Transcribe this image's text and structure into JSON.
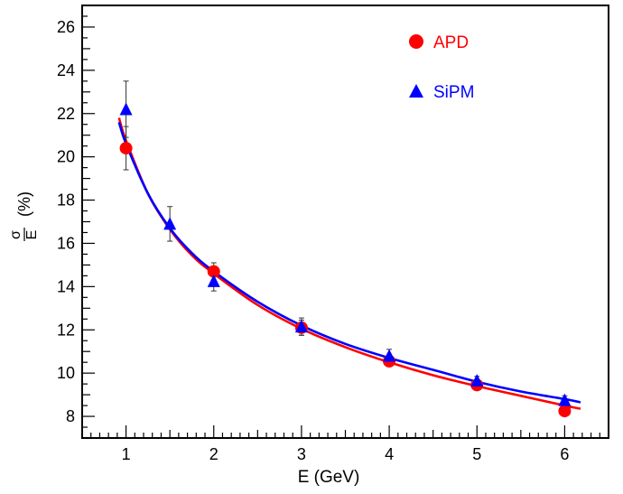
{
  "chart_data": {
    "type": "scatter",
    "xlabel": "E (GeV)",
    "ylabel": {
      "fraction_numerator": "σ",
      "fraction_denominator": "E",
      "suffix": "(%)"
    },
    "xlim": [
      0.5,
      6.5
    ],
    "ylim": [
      7,
      27
    ],
    "x_ticks": [
      1,
      2,
      3,
      4,
      5,
      6
    ],
    "y_ticks": [
      8,
      10,
      12,
      14,
      16,
      18,
      20,
      22,
      24,
      26
    ],
    "grid": false,
    "legend_position": "top-right",
    "series": [
      {
        "name": "APD",
        "marker": "circle",
        "color": "#ff0000",
        "points": [
          {
            "x": 1,
            "y": 20.4,
            "err": 1.0
          },
          {
            "x": 2,
            "y": 14.7,
            "err": 0.4
          },
          {
            "x": 3,
            "y": 12.1,
            "err": 0.35
          },
          {
            "x": 4,
            "y": 10.55,
            "err": 0.2
          },
          {
            "x": 5,
            "y": 9.45,
            "err": 0.2
          },
          {
            "x": 6,
            "y": 8.25,
            "err": 0.2
          }
        ],
        "fit_curve": {
          "x": [
            0.92,
            1.0,
            1.25,
            1.5,
            1.75,
            2.0,
            2.5,
            3.0,
            3.5,
            4.0,
            4.5,
            5.0,
            5.5,
            6.0,
            6.18
          ],
          "y": [
            21.8,
            20.75,
            18.3,
            16.65,
            15.45,
            14.6,
            13.15,
            12.05,
            11.2,
            10.5,
            9.9,
            9.4,
            8.95,
            8.5,
            8.35
          ]
        }
      },
      {
        "name": "SiPM",
        "marker": "triangle",
        "color": "#0000ff",
        "points": [
          {
            "x": 1,
            "y": 22.2,
            "err": 1.3
          },
          {
            "x": 1.5,
            "y": 16.9,
            "err": 0.8
          },
          {
            "x": 2,
            "y": 14.25,
            "err": 0.45
          },
          {
            "x": 3,
            "y": 12.15,
            "err": 0.4
          },
          {
            "x": 4,
            "y": 10.8,
            "err": 0.3
          },
          {
            "x": 5,
            "y": 9.65,
            "err": 0.2
          },
          {
            "x": 6,
            "y": 8.75,
            "err": 0.2
          }
        ],
        "fit_curve": {
          "x": [
            0.92,
            1.0,
            1.25,
            1.5,
            1.75,
            2.0,
            2.5,
            3.0,
            3.5,
            4.0,
            4.5,
            5.0,
            5.5,
            6.0,
            6.18
          ],
          "y": [
            21.6,
            20.6,
            18.3,
            16.7,
            15.55,
            14.7,
            13.3,
            12.2,
            11.35,
            10.7,
            10.15,
            9.6,
            9.15,
            8.8,
            8.65
          ]
        }
      }
    ]
  }
}
